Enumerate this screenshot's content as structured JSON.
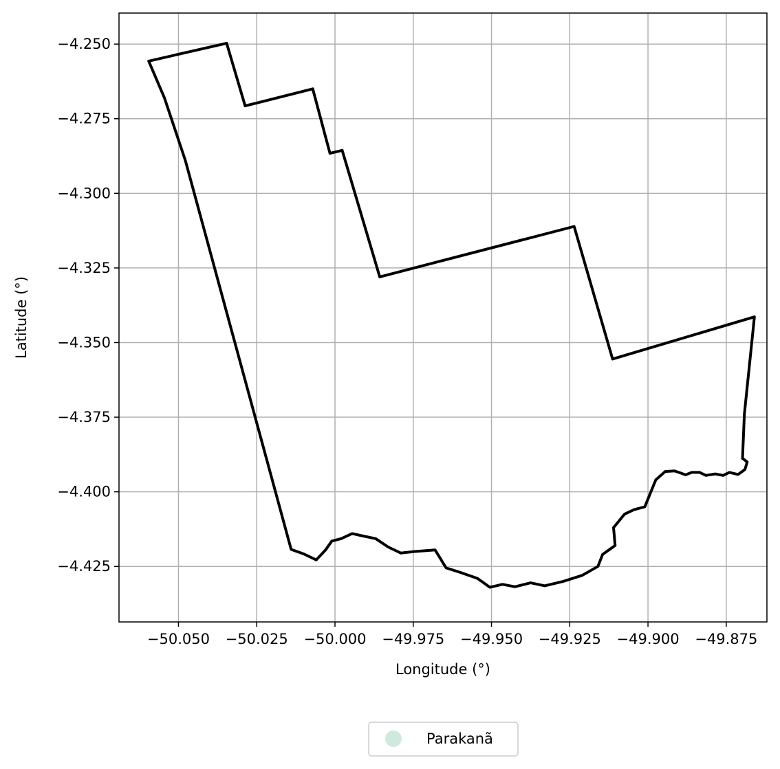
{
  "chart_data": {
    "type": "map",
    "xlabel": "Longitude (°)",
    "ylabel": "Latitude (°)",
    "xlim": [
      -50.069,
      -49.862
    ],
    "ylim": [
      -4.4436,
      -4.2396
    ],
    "grid": true,
    "legend_position": "bottom-center",
    "x_ticks": [
      {
        "value": -50.05,
        "label": "−50.050"
      },
      {
        "value": -50.025,
        "label": "−50.025"
      },
      {
        "value": -50.0,
        "label": "−50.000"
      },
      {
        "value": -49.975,
        "label": "−49.975"
      },
      {
        "value": -49.95,
        "label": "−49.950"
      },
      {
        "value": -49.925,
        "label": "−49.925"
      },
      {
        "value": -49.9,
        "label": "−49.900"
      },
      {
        "value": -49.875,
        "label": "−49.875"
      }
    ],
    "y_ticks": [
      {
        "value": -4.25,
        "label": "−4.250"
      },
      {
        "value": -4.275,
        "label": "−4.275"
      },
      {
        "value": -4.3,
        "label": "−4.300"
      },
      {
        "value": -4.325,
        "label": "−4.325"
      },
      {
        "value": -4.35,
        "label": "−4.350"
      },
      {
        "value": -4.375,
        "label": "−4.375"
      },
      {
        "value": -4.4,
        "label": "−4.400"
      },
      {
        "value": -4.425,
        "label": "−4.425"
      }
    ],
    "series": [
      {
        "name": "Parakanã",
        "color": "#cfeadd",
        "edge_color": "#000000",
        "boundary": [
          [
            -50.0595,
            -4.2557
          ],
          [
            -50.0346,
            -4.2497
          ],
          [
            -50.0287,
            -4.2707
          ],
          [
            -50.0071,
            -4.265
          ],
          [
            -50.0016,
            -4.2866
          ],
          [
            -49.9977,
            -4.2856
          ],
          [
            -49.9857,
            -4.328
          ],
          [
            -49.9236,
            -4.3111
          ],
          [
            -49.9113,
            -4.3555
          ],
          [
            -49.866,
            -4.3414
          ],
          [
            -49.8692,
            -4.374
          ],
          [
            -49.8698,
            -4.3888
          ],
          [
            -49.8683,
            -4.39
          ],
          [
            -49.869,
            -4.3925
          ],
          [
            -49.8712,
            -4.3942
          ],
          [
            -49.874,
            -4.3935
          ],
          [
            -49.876,
            -4.3945
          ],
          [
            -49.8785,
            -4.394
          ],
          [
            -49.8815,
            -4.3945
          ],
          [
            -49.8835,
            -4.3935
          ],
          [
            -49.886,
            -4.3935
          ],
          [
            -49.888,
            -4.3943
          ],
          [
            -49.8915,
            -4.393
          ],
          [
            -49.8945,
            -4.3932
          ],
          [
            -49.8975,
            -4.396
          ],
          [
            -49.901,
            -4.405
          ],
          [
            -49.9045,
            -4.406
          ],
          [
            -49.9075,
            -4.4075
          ],
          [
            -49.911,
            -4.412
          ],
          [
            -49.9105,
            -4.418
          ],
          [
            -49.9145,
            -4.421
          ],
          [
            -49.916,
            -4.425
          ],
          [
            -49.921,
            -4.428
          ],
          [
            -49.927,
            -4.43
          ],
          [
            -49.933,
            -4.4315
          ],
          [
            -49.9375,
            -4.4305
          ],
          [
            -49.9425,
            -4.4318
          ],
          [
            -49.9465,
            -4.431
          ],
          [
            -49.9505,
            -4.432
          ],
          [
            -49.9545,
            -4.429
          ],
          [
            -49.96,
            -4.427
          ],
          [
            -49.9645,
            -4.4255
          ],
          [
            -49.968,
            -4.4195
          ],
          [
            -49.9745,
            -4.42
          ],
          [
            -49.979,
            -4.4205
          ],
          [
            -49.983,
            -4.4185
          ],
          [
            -49.987,
            -4.4157
          ],
          [
            -49.9915,
            -4.4147
          ],
          [
            -49.9945,
            -4.414
          ],
          [
            -49.998,
            -4.4157
          ],
          [
            -50.001,
            -4.4165
          ],
          [
            -50.003,
            -4.4195
          ],
          [
            -50.006,
            -4.4228
          ],
          [
            -50.01,
            -4.4208
          ],
          [
            -50.014,
            -4.4193
          ],
          [
            -50.0325,
            -4.348
          ],
          [
            -50.0478,
            -4.289
          ],
          [
            -50.0545,
            -4.268
          ],
          [
            -50.0595,
            -4.2557
          ]
        ]
      }
    ]
  }
}
